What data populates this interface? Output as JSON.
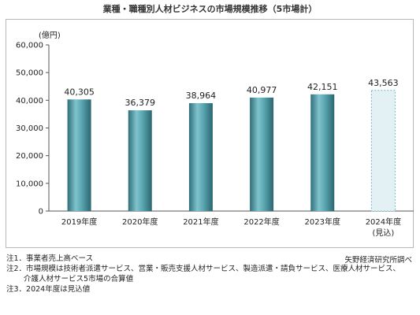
{
  "title": "業種・職種別人材ビジネスの市場規模推移（5市場計）",
  "unit_label": "(億円)",
  "chart_data": {
    "type": "bar",
    "categories": [
      "2019年度",
      "2020年度",
      "2021年度",
      "2022年度",
      "2023年度",
      "2024年度"
    ],
    "category_sublabels": [
      "",
      "",
      "",
      "",
      "",
      "(見込)"
    ],
    "values": [
      40305,
      36379,
      38964,
      40977,
      42151,
      43563
    ],
    "value_labels": [
      "40,305",
      "36,379",
      "38,964",
      "40,977",
      "42,151",
      "43,563"
    ],
    "ylim": [
      0,
      60000
    ],
    "yticks": [
      0,
      10000,
      20000,
      30000,
      40000,
      50000,
      60000
    ],
    "ytick_labels": [
      "0",
      "10,000",
      "20,000",
      "30,000",
      "40,000",
      "50,000",
      "60,000"
    ],
    "grid": false,
    "bar_color": "#4f9aa6",
    "forecast_bar_color": "#e3f1f5",
    "forecast_index": 5
  },
  "notes": [
    "注1．事業者売上高ベース",
    "注2．市場規模は技術者派遣サービス、営業・販売支援人材サービス、製造派遣・請負サービス、医療人材サービス、",
    "　　 介護人材サービス5市場の合算値",
    "注3．2024年度は見込値"
  ],
  "source": "矢野経済研究所調べ"
}
